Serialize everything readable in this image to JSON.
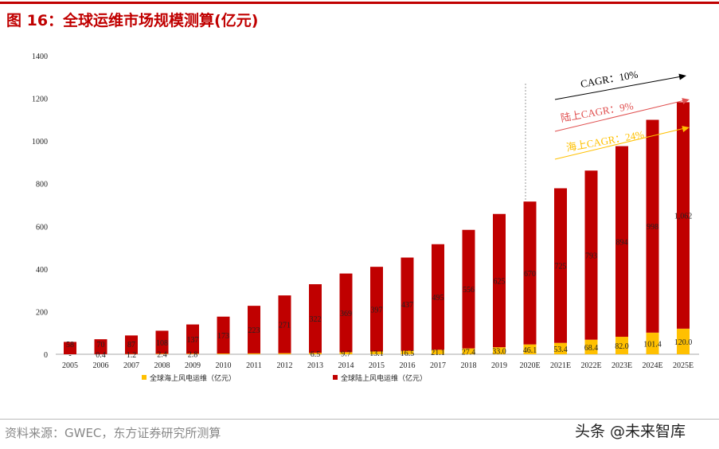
{
  "title": "图 16：全球运维市场规模测算(亿元)",
  "source": "资料来源：GWEC，东方证券研究所测算",
  "watermark": "头条 @未来智库",
  "colors": {
    "onshore": "#c00000",
    "offshore": "#ffc000",
    "title": "#c00000",
    "total_arrow": "#000000"
  },
  "chart_data": {
    "type": "bar",
    "stacked": true,
    "categories": [
      "2005",
      "2006",
      "2007",
      "2008",
      "2009",
      "2010",
      "2011",
      "2012",
      "2013",
      "2014",
      "2015",
      "2016",
      "2017",
      "2018",
      "2019",
      "2020E",
      "2021E",
      "2022E",
      "2023E",
      "2024E",
      "2025E"
    ],
    "series": [
      {
        "name": "全球海上风电运维（亿元）",
        "color": "#ffc000",
        "values": [
          0,
          0.4,
          1.2,
          2.4,
          2.8,
          3.5,
          4.2,
          5.0,
          6.5,
          9.7,
          13.1,
          16.5,
          21.1,
          27.4,
          33.0,
          46.1,
          53.4,
          68.4,
          82.0,
          101.4,
          120.0
        ],
        "labels": [
          "-",
          "0.4",
          "1.2",
          "2.4",
          "2.8",
          "",
          "",
          "",
          "6.5",
          "9.7",
          "13.1",
          "16.5",
          "21.1",
          "27.4",
          "33.0",
          "46.1",
          "53.4",
          "68.4",
          "82.0",
          "101.4",
          "120.0"
        ]
      },
      {
        "name": "全球陆上风电运维（亿元）",
        "color": "#c00000",
        "values": [
          58,
          70,
          87,
          108,
          137,
          173,
          223,
          271,
          322,
          369,
          397,
          437,
          495,
          556,
          625,
          670,
          725,
          793,
          894,
          998,
          1062
        ],
        "labels": [
          "58",
          "70",
          "87",
          "108",
          "137",
          "173",
          "223",
          "271",
          "322",
          "369",
          "397",
          "437",
          "495",
          "556",
          "625",
          "670",
          "725",
          "793",
          "894",
          "998",
          "1,062"
        ]
      }
    ],
    "ylim": [
      0,
      1400
    ],
    "yticks": [
      "0",
      "200",
      "400",
      "600",
      "800",
      "1000",
      "1200",
      "1400"
    ],
    "grid": false,
    "legend": "bottom",
    "annotations": [
      {
        "text": "CAGR：10%",
        "color": "#000000"
      },
      {
        "text": "陆上CAGR：9%",
        "color": "#e05050"
      },
      {
        "text": "海上CAGR：24%",
        "color": "#ffc000"
      }
    ]
  }
}
